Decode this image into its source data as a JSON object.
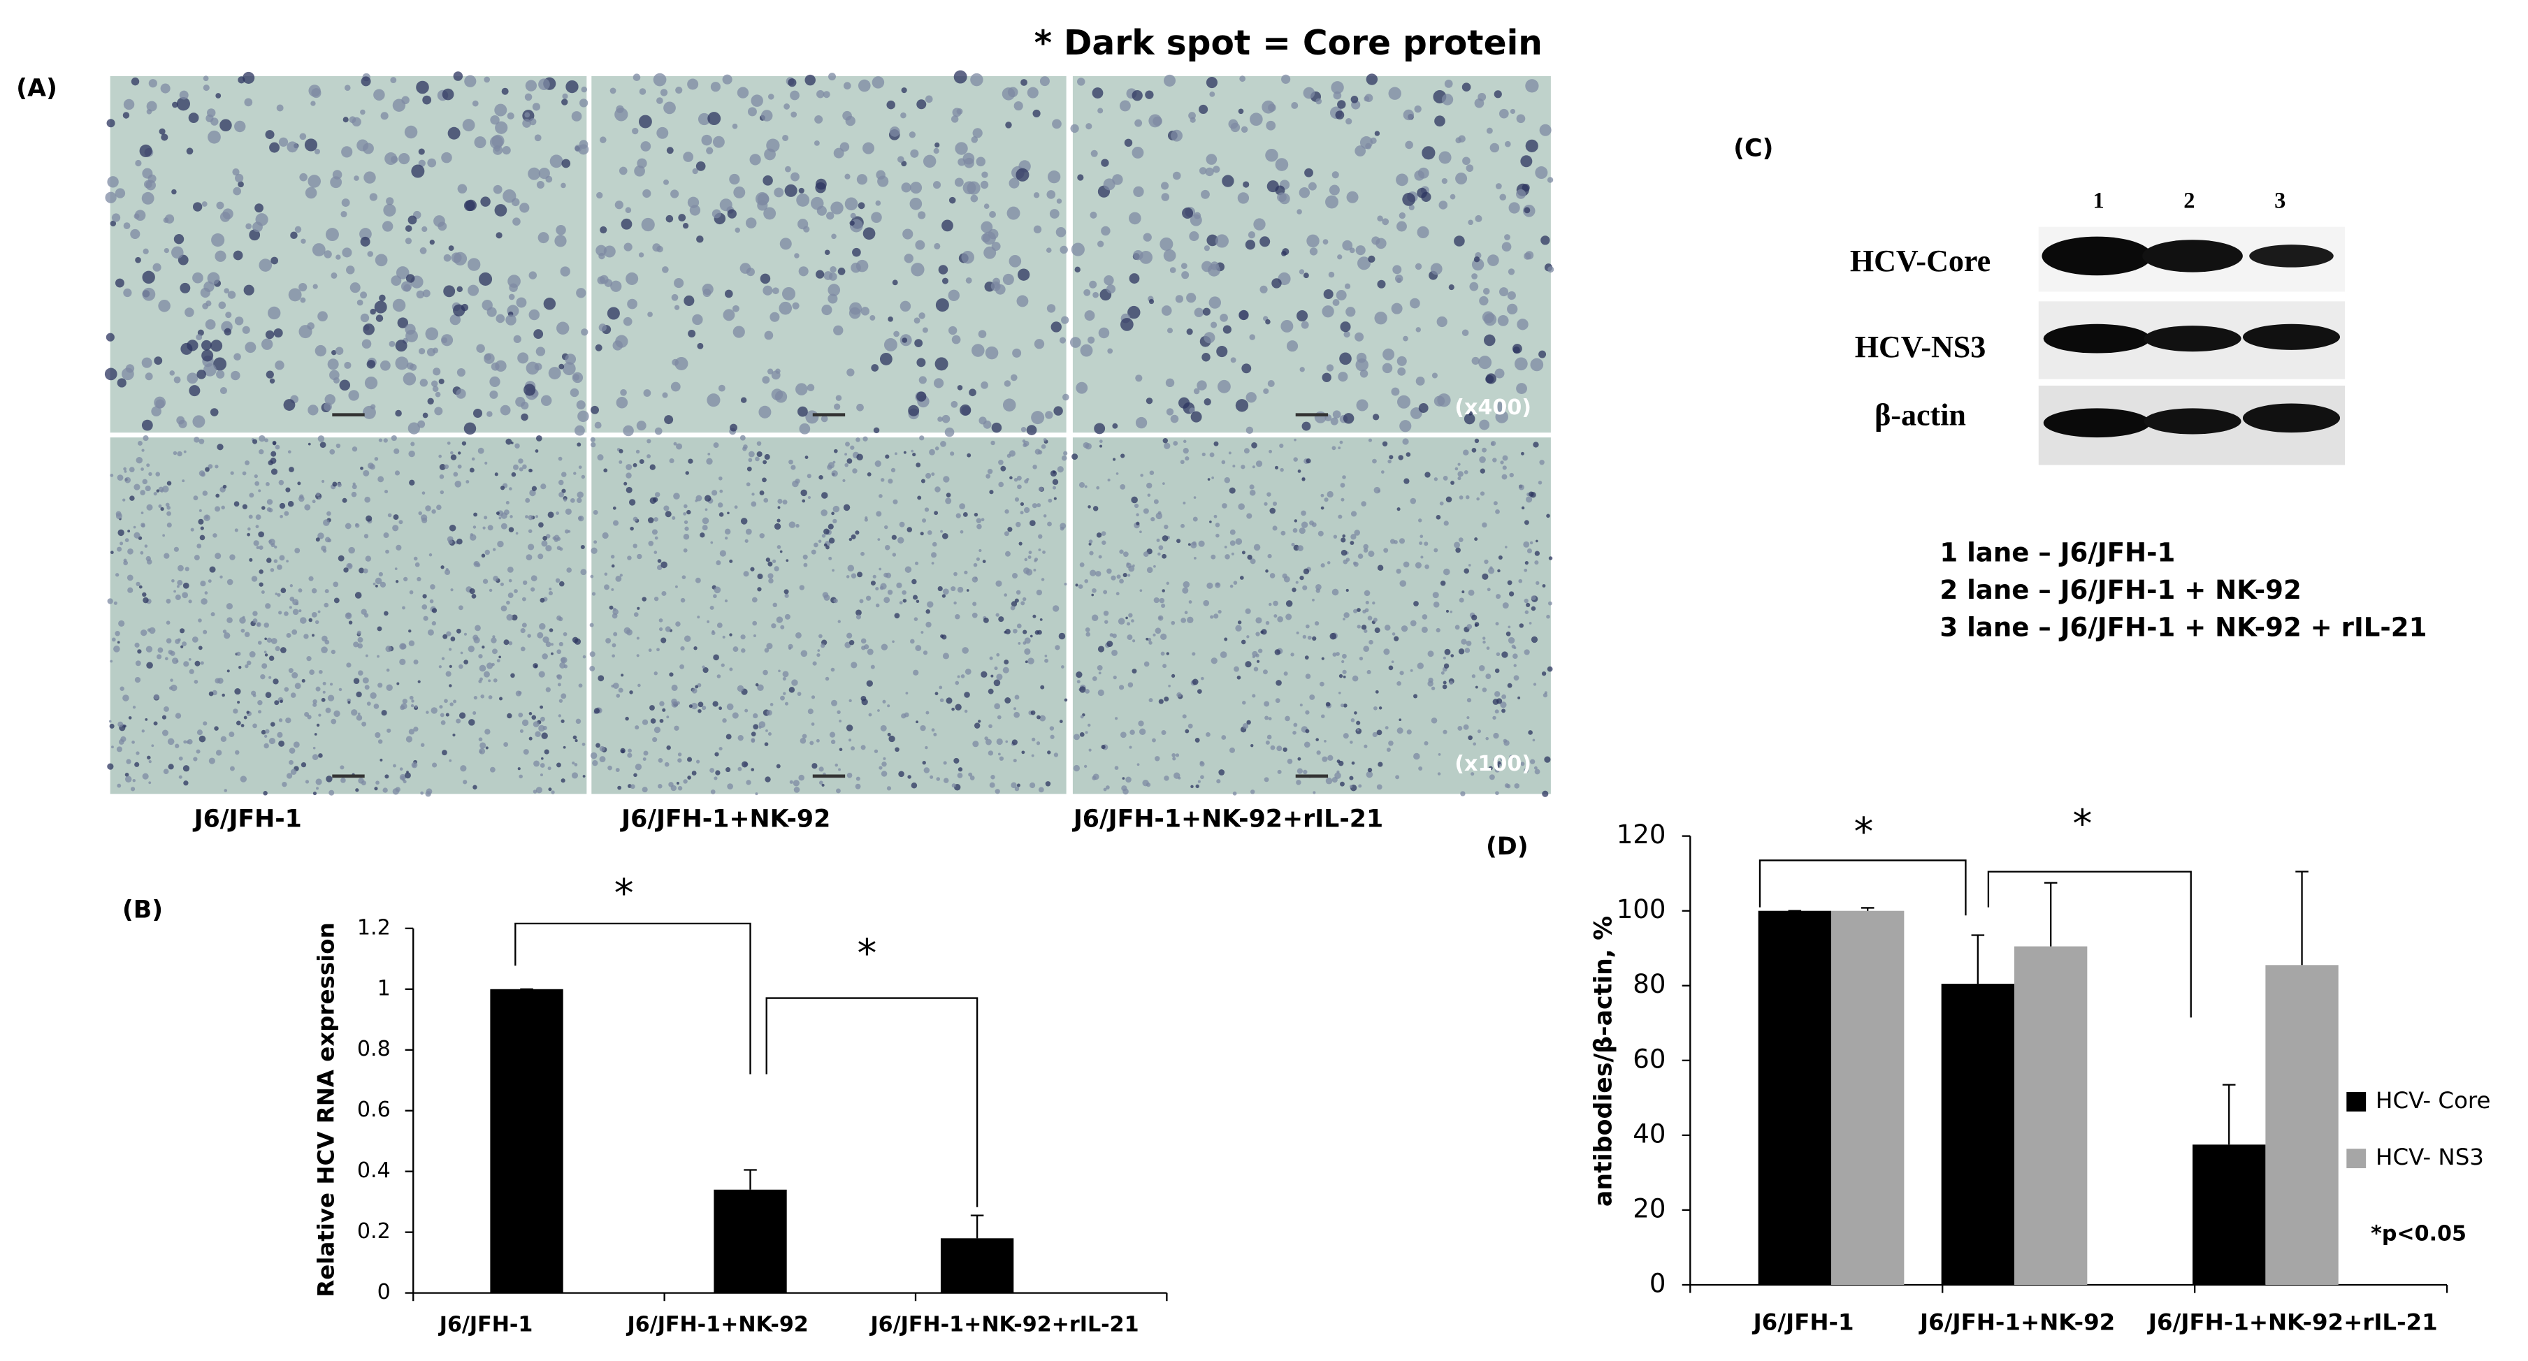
{
  "panel_a": {
    "label": "(A)",
    "note": "* Dark spot = Core protein",
    "magnifications": [
      "(x400)",
      "(x100)"
    ],
    "captions": [
      "J6/JFH-1",
      "J6/JFH-1+NK-92",
      "J6/JFH-1+NK-92+rIL-21"
    ]
  },
  "panel_c": {
    "label": "(C)",
    "lanes": [
      "1",
      "2",
      "3"
    ],
    "bands": [
      "HCV-Core",
      "HCV-NS3",
      "β-actin"
    ],
    "legend": [
      "1 lane – J6/JFH-1",
      "2 lane – J6/JFH-1 + NK-92",
      "3 lane – J6/JFH-1 + NK-92 + rIL-21"
    ]
  },
  "chart_data": [
    {
      "type": "bar",
      "panel": "(B)",
      "ylabel": "Relative HCV RNA expression",
      "categories": [
        "J6/JFH-1",
        "J6/JFH-1+NK-92",
        "J6/JFH-1+NK-92+rIL-21"
      ],
      "values": [
        1,
        0.34,
        0.18
      ],
      "errors": [
        0,
        0.065,
        0.075
      ],
      "color": "#000000",
      "ylim": [
        0,
        1.2
      ],
      "yticks": [
        0,
        0.2,
        0.4,
        0.6,
        0.8,
        1,
        1.2
      ],
      "annotations": [
        "*",
        "*"
      ]
    },
    {
      "type": "grouped_bar",
      "panel": "(D)",
      "ylabel": "antibodies/β-actin, %",
      "categories": [
        "J6/JFH-1",
        "J6/JFH-1+NK-92",
        "J6/JFH-1+NK-92+rIL-21"
      ],
      "series": [
        {
          "name": "HCV- Core",
          "color": "#000000",
          "values": [
            100,
            80.5,
            37.5
          ],
          "errors": [
            0,
            13,
            16
          ]
        },
        {
          "name": "HCV- NS3",
          "color": "#a6a6a6",
          "values": [
            100,
            90.5,
            85.5
          ],
          "errors": [
            0.8,
            17,
            25
          ]
        }
      ],
      "ylim": [
        0,
        120
      ],
      "yticks": [
        0,
        20,
        40,
        60,
        80,
        100,
        120
      ],
      "annotations": [
        "*",
        "*"
      ],
      "note": "*p<0.05"
    }
  ]
}
